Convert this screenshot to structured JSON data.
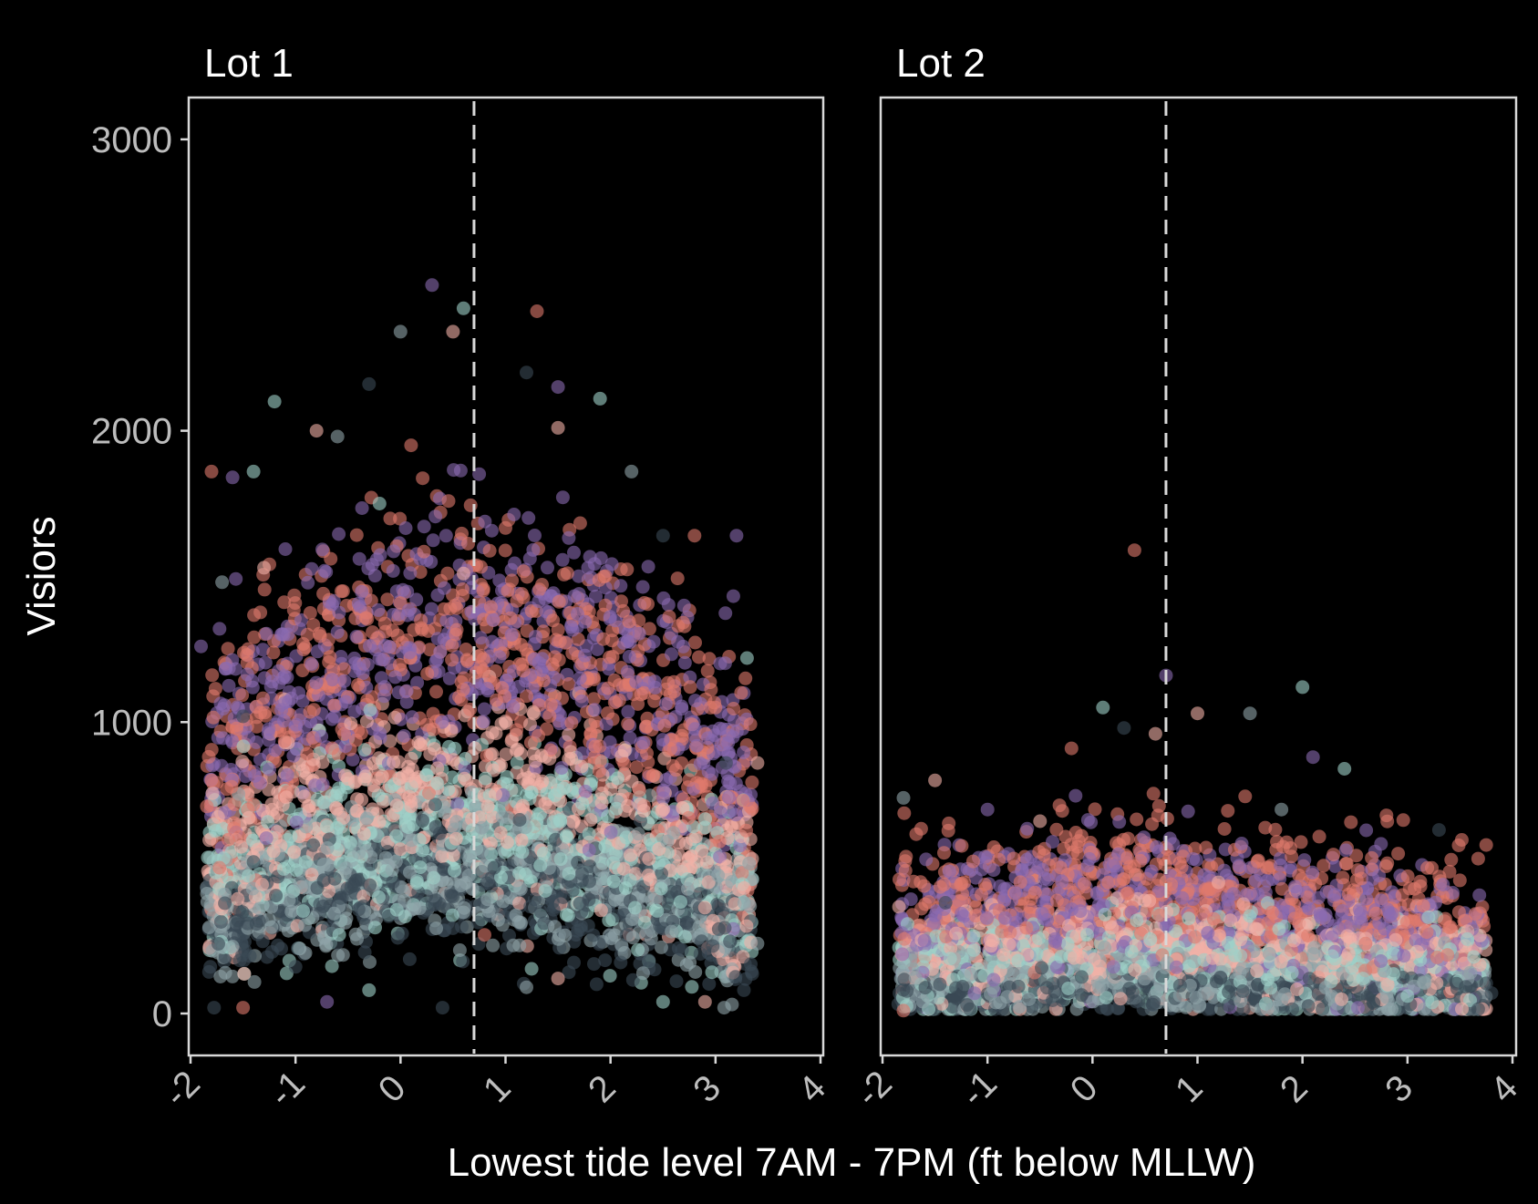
{
  "chart_data": {
    "type": "scatter",
    "ylabel": "Visiors",
    "xlabel": "Lowest tide level 7AM - 7PM (ft below MLLW)",
    "xlim": [
      -2,
      4
    ],
    "ylim": [
      -150,
      3150
    ],
    "x_ticks": [
      "-2",
      "-1",
      "0",
      "1",
      "2",
      "3",
      "4"
    ],
    "y_ticks": [
      "0",
      "1000",
      "2000",
      "3000"
    ],
    "reference_line": {
      "x": 0.7,
      "style": "dashed"
    },
    "point_colors": [
      "#e07a6c",
      "#8a6bb0",
      "#9ed0c8",
      "#f2b1a6",
      "#8fa3a8",
      "#3b4a55"
    ],
    "point_opacity": 0.6,
    "grid": false,
    "facets": [
      {
        "title": "Lot 1",
        "approx_point_count": 4000,
        "points": [
          [
            -1.8,
            1860
          ],
          [
            -1.6,
            1840
          ],
          [
            -1.4,
            1860
          ],
          [
            -1.3,
            1530
          ],
          [
            -1.7,
            1480
          ],
          [
            -1.5,
            1020
          ],
          [
            -1.8,
            800
          ],
          [
            -1.9,
            1260
          ],
          [
            -1.2,
            2100
          ],
          [
            -0.8,
            2000
          ],
          [
            -0.6,
            1980
          ],
          [
            -0.3,
            2160
          ],
          [
            0.1,
            1950
          ],
          [
            0.3,
            2500
          ],
          [
            0.6,
            2420
          ],
          [
            0.5,
            2340
          ],
          [
            0.0,
            2340
          ],
          [
            1.2,
            2200
          ],
          [
            1.3,
            2410
          ],
          [
            1.5,
            2150
          ],
          [
            1.9,
            2110
          ],
          [
            1.5,
            2010
          ],
          [
            2.2,
            1860
          ],
          [
            2.5,
            1640
          ],
          [
            2.8,
            1640
          ],
          [
            3.2,
            1640
          ],
          [
            3.3,
            1220
          ],
          [
            3.4,
            860
          ],
          [
            3.4,
            240
          ],
          [
            3.1,
            860
          ],
          [
            3.0,
            1050
          ],
          [
            2.7,
            1400
          ],
          [
            2.5,
            40
          ],
          [
            1.5,
            120
          ],
          [
            1.2,
            90
          ],
          [
            0.4,
            20
          ],
          [
            -1.5,
            20
          ],
          [
            -0.7,
            40
          ],
          [
            -0.3,
            80
          ],
          [
            2.9,
            40
          ],
          [
            -1.6,
            230
          ],
          [
            -1.0,
            160
          ],
          [
            0.8,
            270
          ],
          [
            1.7,
            1440
          ],
          [
            -0.2,
            1750
          ],
          [
            0.6,
            1510
          ],
          [
            2.6,
            620
          ],
          [
            -1.4,
            520
          ]
        ]
      },
      {
        "title": "Lot 2",
        "approx_point_count": 4000,
        "points": [
          [
            0.4,
            1590
          ],
          [
            0.7,
            1160
          ],
          [
            2.0,
            1120
          ],
          [
            1.0,
            1030
          ],
          [
            1.5,
            1030
          ],
          [
            0.3,
            980
          ],
          [
            -0.2,
            910
          ],
          [
            2.1,
            880
          ],
          [
            2.4,
            840
          ],
          [
            -1.5,
            800
          ],
          [
            -1.8,
            740
          ],
          [
            3.3,
            630
          ],
          [
            2.8,
            680
          ],
          [
            -1.0,
            700
          ],
          [
            0.1,
            1050
          ],
          [
            0.6,
            960
          ],
          [
            3.6,
            140
          ],
          [
            3.8,
            70
          ],
          [
            -1.8,
            10
          ],
          [
            -1.6,
            250
          ],
          [
            3.2,
            330
          ],
          [
            -0.5,
            660
          ],
          [
            1.8,
            700
          ],
          [
            -1.4,
            380
          ],
          [
            2.6,
            240
          ],
          [
            0.2,
            160
          ],
          [
            3.0,
            60
          ],
          [
            1.2,
            450
          ]
        ]
      }
    ]
  }
}
